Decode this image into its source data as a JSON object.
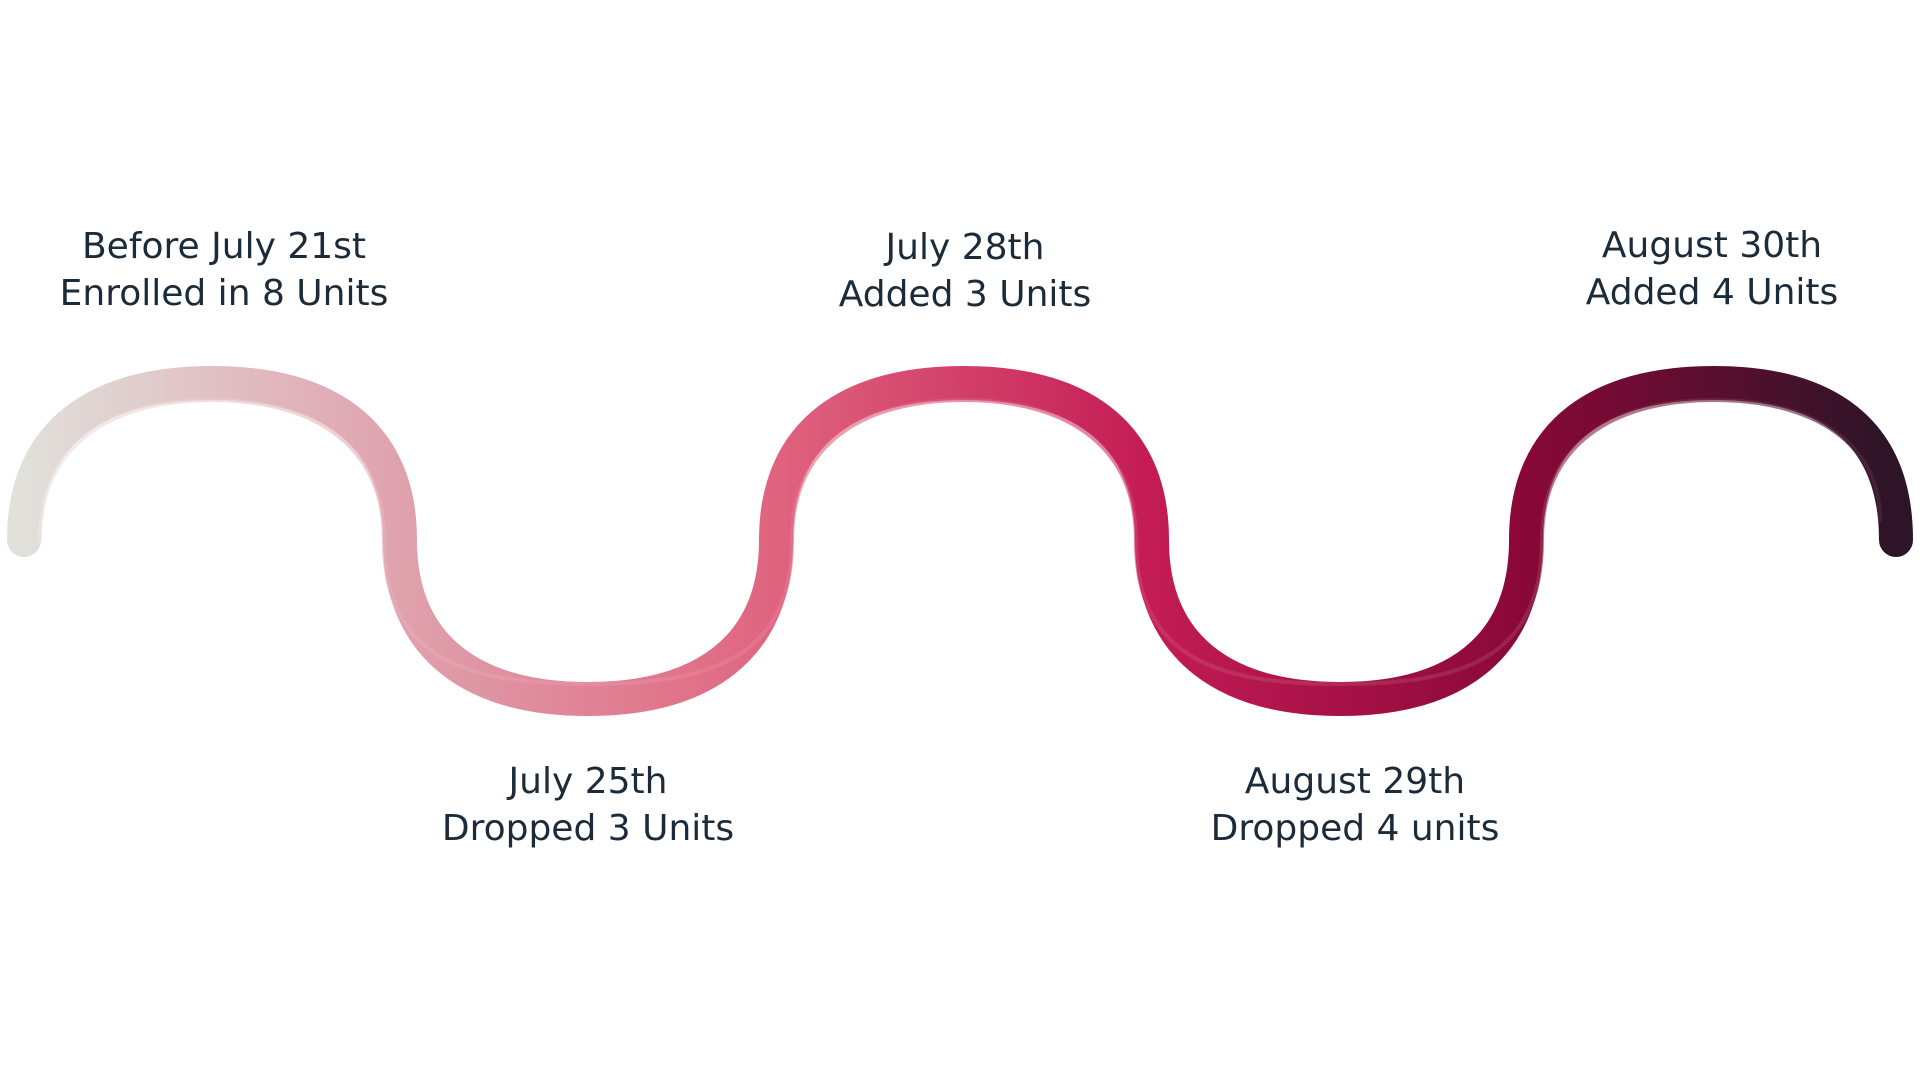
{
  "milestones": [
    {
      "date": "Before July 21st",
      "change": "Enrolled in 8 Units"
    },
    {
      "date": "July 25th",
      "change": "Dropped 3 Units"
    },
    {
      "date": "July 28th",
      "change": "Added 3 Units"
    },
    {
      "date": "August 29th",
      "change": "Dropped 4 units"
    },
    {
      "date": "August 30th",
      "change": "Added 4 Units"
    }
  ],
  "colors": {
    "text": "#1c2b3a",
    "gradient": [
      "#e1e0db",
      "#dfa2ad",
      "#e0647f",
      "#c41c55",
      "#8a0838",
      "#2b1526"
    ],
    "inner_line": [
      "#ece9e4",
      "#e6adb8",
      "#e5778f",
      "#cf3e6c",
      "#9c3254",
      "#4a2a3d"
    ]
  }
}
